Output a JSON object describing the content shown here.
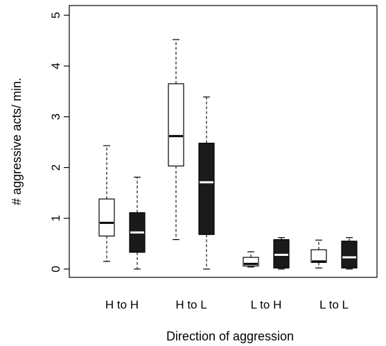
{
  "chart_data": {
    "type": "boxplot",
    "title": "",
    "xlabel": "Direction of aggression",
    "ylabel": "# aggressive acts/ min.",
    "ylim": [
      0,
      5
    ],
    "yticks": [
      "0",
      "1",
      "2",
      "3",
      "4",
      "5"
    ],
    "categories": [
      "H to H",
      "H to L",
      "L to H",
      "L to L"
    ],
    "grid": false,
    "legend": "none",
    "series": [
      {
        "fill": "#ffffff",
        "median_color": "#000000",
        "boxes": [
          {
            "min": 0.15,
            "q1": 0.65,
            "median": 0.91,
            "q3": 1.38,
            "max": 2.43
          },
          {
            "min": 0.58,
            "q1": 2.03,
            "median": 2.62,
            "q3": 3.65,
            "max": 4.52
          },
          {
            "min": 0.04,
            "q1": 0.06,
            "median": 0.1,
            "q3": 0.23,
            "max": 0.34
          },
          {
            "min": 0.02,
            "q1": 0.13,
            "median": 0.15,
            "q3": 0.38,
            "max": 0.57
          }
        ]
      },
      {
        "fill": "#1a1a1a",
        "median_color": "#ffffff",
        "boxes": [
          {
            "min": 0.0,
            "q1": 0.33,
            "median": 0.72,
            "q3": 1.11,
            "max": 1.81
          },
          {
            "min": 0.0,
            "q1": 0.68,
            "median": 1.71,
            "q3": 2.48,
            "max": 3.39
          },
          {
            "min": 0.0,
            "q1": 0.02,
            "median": 0.28,
            "q3": 0.58,
            "max": 0.62
          },
          {
            "min": 0.0,
            "q1": 0.02,
            "median": 0.23,
            "q3": 0.55,
            "max": 0.62
          }
        ]
      }
    ]
  }
}
